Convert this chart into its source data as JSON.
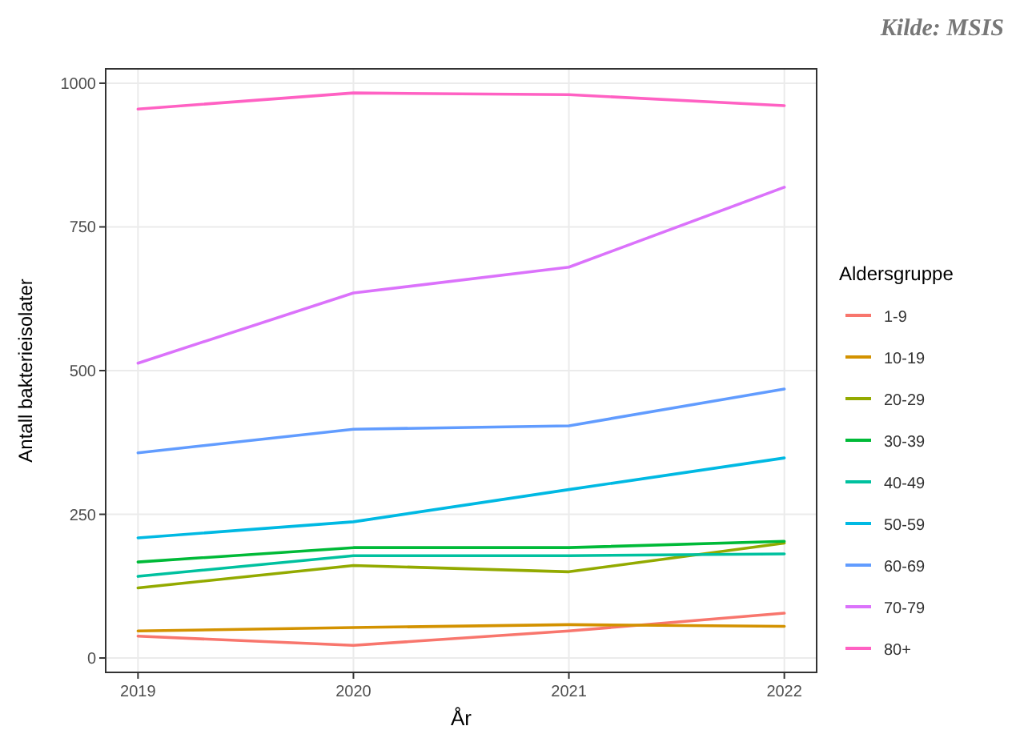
{
  "chart_data": {
    "type": "line",
    "xlabel": "År",
    "ylabel": "Antall bakterieisolater",
    "legend_title": "Aldersgruppe",
    "annotations": [
      "Kilde: MSIS"
    ],
    "x": [
      2019,
      2020,
      2021,
      2022
    ],
    "xlim": [
      2018.85,
      2022.15
    ],
    "xticks": [
      2019,
      2020,
      2021,
      2022
    ],
    "ylim": [
      -25,
      1025
    ],
    "yticks": [
      0,
      250,
      500,
      750,
      1000
    ],
    "grid": true,
    "legend": "right",
    "series": [
      {
        "name": "1-9",
        "color": "#f8766d",
        "values": [
          38,
          22,
          47,
          78
        ]
      },
      {
        "name": "10-19",
        "color": "#d39200",
        "values": [
          47,
          53,
          58,
          55
        ]
      },
      {
        "name": "20-29",
        "color": "#93aa00",
        "values": [
          122,
          161,
          150,
          200
        ]
      },
      {
        "name": "30-39",
        "color": "#00ba38",
        "values": [
          167,
          192,
          192,
          203
        ]
      },
      {
        "name": "40-49",
        "color": "#00c19f",
        "values": [
          142,
          178,
          178,
          181
        ]
      },
      {
        "name": "50-59",
        "color": "#00b9e3",
        "values": [
          209,
          237,
          293,
          348
        ]
      },
      {
        "name": "60-69",
        "color": "#619cff",
        "values": [
          357,
          398,
          404,
          468
        ]
      },
      {
        "name": "70-79",
        "color": "#db72fb",
        "values": [
          513,
          635,
          680,
          819
        ]
      },
      {
        "name": "80+",
        "color": "#ff61c3",
        "values": [
          955,
          983,
          980,
          961
        ]
      }
    ]
  }
}
